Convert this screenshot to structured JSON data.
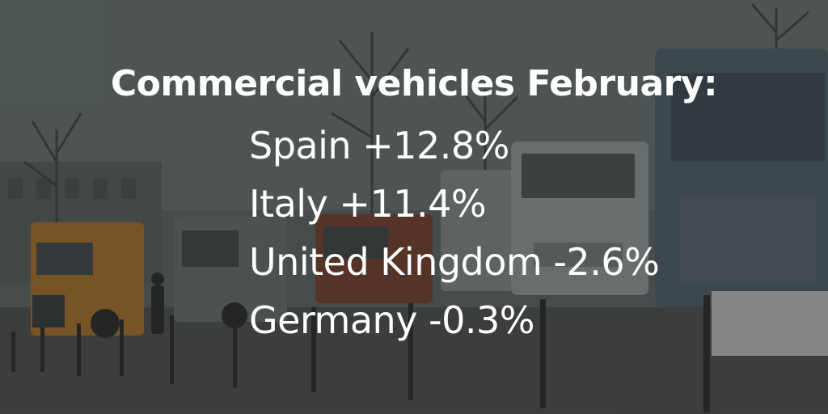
{
  "headline": "Commercial vehicles February:",
  "stats": [
    {
      "label": "Spain +12.8%"
    },
    {
      "label": "Italy +11.4%"
    },
    {
      "label": "United Kingdom -2.6%"
    },
    {
      "label": "Germany -0.3%"
    }
  ],
  "colors": {
    "text": "#ffffff",
    "overlay": "#2b3030"
  }
}
